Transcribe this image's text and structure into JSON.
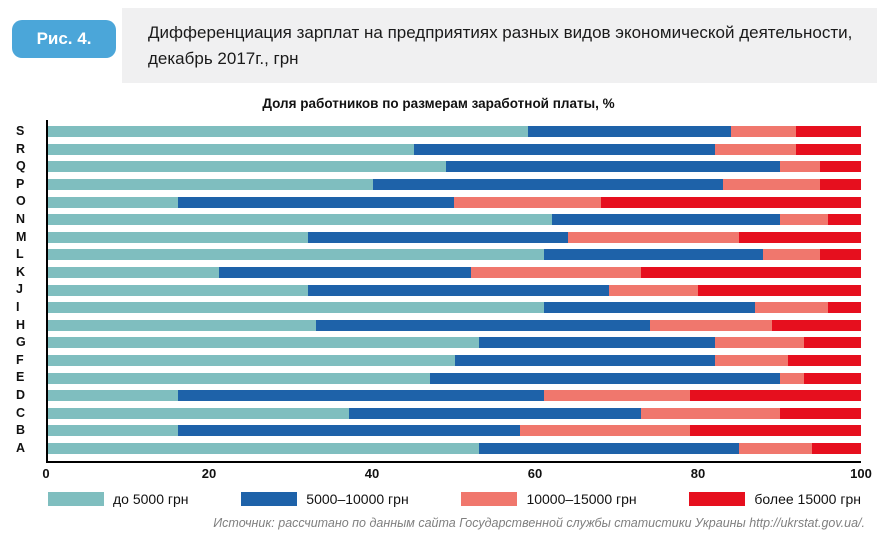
{
  "figure_label": "Рис. 4.",
  "header": {
    "title": "Дифференциация зарплат на предприятиях разных видов экономической деятельности, декабрь 2017г., грн"
  },
  "source_note": "Источник: рассчитано по данным сайта Государственной службы статистики Украины http://ukrstat.gov.ua/.",
  "colors": {
    "badge": "#4ba6d9",
    "header_bg": "#f0f0f1",
    "axis": "#000000",
    "source_text": "#7f7f7f"
  },
  "chart_data": {
    "type": "bar",
    "orientation": "horizontal",
    "stacked": true,
    "units": "percent of workers, each bar sums to 100",
    "title": "Доля работников по размерам заработной платы, %",
    "xlabel": "",
    "ylabel": "",
    "xlim": [
      0,
      100
    ],
    "x_ticks": [
      0,
      20,
      40,
      60,
      80,
      100
    ],
    "grid": false,
    "legend_position": "bottom",
    "category_order": "top-to-bottom",
    "categories": [
      "S",
      "R",
      "Q",
      "P",
      "O",
      "N",
      "M",
      "L",
      "K",
      "J",
      "I",
      "H",
      "G",
      "F",
      "E",
      "D",
      "C",
      "B",
      "A"
    ],
    "series": [
      {
        "name": "до 5000 грн",
        "color": "#7fbebf",
        "values": [
          59,
          45,
          49,
          40,
          16,
          62,
          32,
          61,
          21,
          32,
          61,
          33,
          53,
          50,
          47,
          16,
          37,
          16,
          53
        ]
      },
      {
        "name": "5000–10000 грн",
        "color": "#1e62a9",
        "values": [
          25,
          37,
          41,
          43,
          34,
          28,
          32,
          27,
          31,
          37,
          26,
          41,
          29,
          32,
          43,
          45,
          36,
          42,
          32
        ]
      },
      {
        "name": "10000–15000 грн",
        "color": "#f0776d",
        "values": [
          8,
          10,
          5,
          12,
          18,
          6,
          21,
          7,
          21,
          11,
          9,
          15,
          11,
          9,
          3,
          18,
          17,
          21,
          9
        ]
      },
      {
        "name": "более 15000 грн",
        "color": "#e60f1e",
        "values": [
          8,
          8,
          5,
          5,
          32,
          4,
          15,
          5,
          27,
          20,
          4,
          11,
          7,
          9,
          7,
          21,
          10,
          21,
          6
        ]
      }
    ]
  }
}
